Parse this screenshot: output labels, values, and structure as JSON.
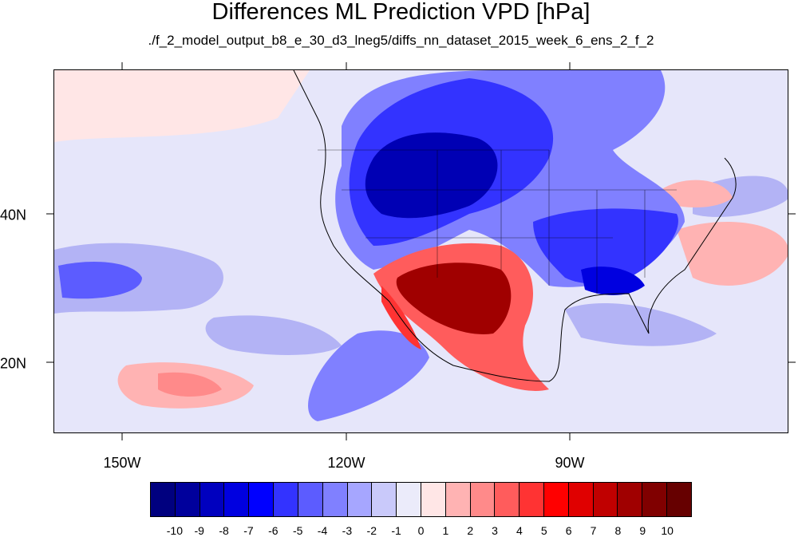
{
  "title": "Differences ML Prediction VPD [hPa]",
  "subtitle": "./f_2_model_output_b8_e_30_d3_lneg5/diffs_nn_dataset_2015_week_6_ens_2_f_2",
  "map": {
    "x_labels": [
      "150W",
      "120W",
      "90W"
    ],
    "y_labels": [
      "40N",
      "20N"
    ],
    "field_colors": {
      "background": "#e6e6fa",
      "strong_negative": "#0000b4",
      "negative": "#4d4dff",
      "weak_negative": "#b3b3f5",
      "weak_positive": "#ffd6d6",
      "positive": "#ff5a5a",
      "strong_positive": "#a00000"
    }
  },
  "colorbar": {
    "labels": [
      "-10",
      "-9",
      "-8",
      "-7",
      "-6",
      "-5",
      "-4",
      "-3",
      "-2",
      "-1",
      "0",
      "1",
      "2",
      "3",
      "4",
      "5",
      "6",
      "7",
      "8",
      "9",
      "10"
    ],
    "colors": [
      "#00007f",
      "#00009c",
      "#0000bf",
      "#0000e0",
      "#0000ff",
      "#3333ff",
      "#5c5cff",
      "#8080ff",
      "#a6a6ff",
      "#c9c9fa",
      "#ebebfa",
      "#ffe6e6",
      "#ffb3b3",
      "#ff8a8a",
      "#ff5c5c",
      "#ff3333",
      "#ff0000",
      "#e00000",
      "#c00000",
      "#a00000",
      "#800000",
      "#660000"
    ]
  }
}
